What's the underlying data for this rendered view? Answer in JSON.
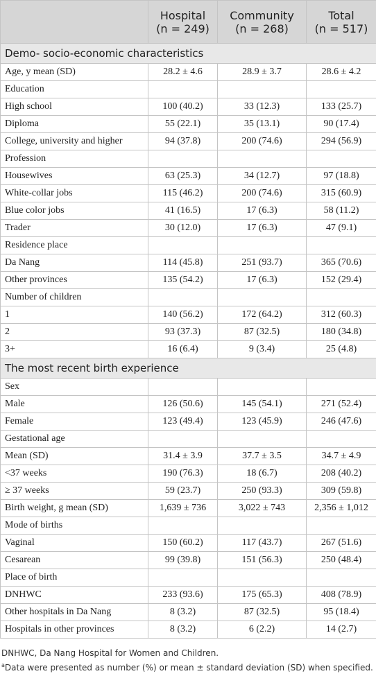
{
  "table": {
    "columns": [
      {
        "title": "Hospital",
        "n": "(n = 249)"
      },
      {
        "title": "Community",
        "n": "(n = 268)"
      },
      {
        "title": "Total",
        "n": "(n = 517)"
      }
    ],
    "sections": [
      {
        "title": "Demo- socio-economic characteristics",
        "rows": [
          [
            "Age, y mean (SD)",
            "28.2 ± 4.6",
            "28.9 ± 3.7",
            "28.6 ± 4.2"
          ],
          [
            "Education"
          ],
          [
            "High school",
            "100 (40.2)",
            "33 (12.3)",
            "133 (25.7)"
          ],
          [
            "Diploma",
            "55 (22.1)",
            "35 (13.1)",
            "90 (17.4)"
          ],
          [
            "College, university and higher",
            "94 (37.8)",
            "200 (74.6)",
            "294 (56.9)"
          ],
          [
            "Profession"
          ],
          [
            "Housewives",
            "63 (25.3)",
            "34 (12.7)",
            "97 (18.8)"
          ],
          [
            "White-collar jobs",
            "115 (46.2)",
            "200 (74.6)",
            "315 (60.9)"
          ],
          [
            "Blue color jobs",
            "41 (16.5)",
            "17 (6.3)",
            "58 (11.2)"
          ],
          [
            "Trader",
            "30 (12.0)",
            "17 (6.3)",
            "47 (9.1)"
          ],
          [
            "Residence place"
          ],
          [
            "Da Nang",
            "114 (45.8)",
            "251 (93.7)",
            "365 (70.6)"
          ],
          [
            "Other provinces",
            "135 (54.2)",
            "17 (6.3)",
            "152 (29.4)"
          ],
          [
            "Number of children"
          ],
          [
            "1",
            "140 (56.2)",
            "172 (64.2)",
            "312 (60.3)"
          ],
          [
            "2",
            "93 (37.3)",
            "87 (32.5)",
            "180 (34.8)"
          ],
          [
            "3+",
            "16 (6.4)",
            "9 (3.4)",
            "25 (4.8)"
          ]
        ]
      },
      {
        "title": "The most recent birth experience",
        "rows": [
          [
            "Sex"
          ],
          [
            "Male",
            "126 (50.6)",
            "145 (54.1)",
            "271 (52.4)"
          ],
          [
            "Female",
            "123 (49.4)",
            "123 (45.9)",
            "246 (47.6)"
          ],
          [
            "Gestational age"
          ],
          [
            "Mean (SD)",
            "31.4 ± 3.9",
            "37.7 ± 3.5",
            "34.7 ± 4.9"
          ],
          [
            "<37 weeks",
            "190 (76.3)",
            "18 (6.7)",
            "208 (40.2)"
          ],
          [
            "≥ 37 weeks",
            "59 (23.7)",
            "250 (93.3)",
            "309 (59.8)"
          ],
          [
            "Birth weight, g mean (SD)",
            "1,639 ± 736",
            "3,022 ± 743",
            "2,356 ± 1,012"
          ],
          [
            "Mode of births"
          ],
          [
            "Vaginal",
            "150 (60.2)",
            "117 (43.7)",
            "267 (51.6)"
          ],
          [
            "Cesarean",
            "99 (39.8)",
            "151 (56.3)",
            "250 (48.4)"
          ],
          [
            "Place of birth"
          ],
          [
            "DNHWC",
            "233 (93.6)",
            "175 (65.3)",
            "408 (78.9)"
          ],
          [
            "Other hospitals in Da Nang",
            "8 (3.2)",
            "87 (32.5)",
            "95 (18.4)"
          ],
          [
            "Hospitals in other provinces",
            "8 (3.2)",
            "6 (2.2)",
            "14 (2.7)"
          ]
        ]
      }
    ]
  },
  "footnotes": {
    "abbreviation": "DNHWC, Da Nang Hospital for Women and Children.",
    "marker": "a",
    "note": "Data were presented as number (%) or mean ± standard deviation (SD) when specified."
  }
}
